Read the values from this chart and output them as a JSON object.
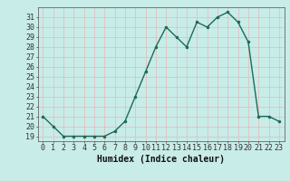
{
  "x": [
    0,
    1,
    2,
    3,
    4,
    5,
    6,
    7,
    8,
    9,
    10,
    11,
    12,
    13,
    14,
    15,
    16,
    17,
    18,
    19,
    20,
    21,
    22,
    23
  ],
  "y": [
    21.0,
    20.0,
    19.0,
    19.0,
    19.0,
    19.0,
    19.0,
    19.5,
    20.5,
    23.0,
    25.5,
    28.0,
    30.0,
    29.0,
    28.0,
    30.5,
    30.0,
    31.0,
    31.5,
    30.5,
    28.5,
    21.0,
    21.0,
    20.5
  ],
  "line_color": "#1a6b5a",
  "marker": ".",
  "marker_size": 3,
  "background_color": "#c8ece8",
  "grid_color": "#e8b8b8",
  "xlabel": "Humidex (Indice chaleur)",
  "xlim": [
    -0.5,
    23.5
  ],
  "ylim": [
    18.5,
    32.0
  ],
  "yticks": [
    19,
    20,
    21,
    22,
    23,
    24,
    25,
    26,
    27,
    28,
    29,
    30,
    31
  ],
  "xticks": [
    0,
    1,
    2,
    3,
    4,
    5,
    6,
    7,
    8,
    9,
    10,
    11,
    12,
    13,
    14,
    15,
    16,
    17,
    18,
    19,
    20,
    21,
    22,
    23
  ],
  "xlabel_fontsize": 7,
  "tick_fontsize": 6,
  "line_width": 1.0
}
